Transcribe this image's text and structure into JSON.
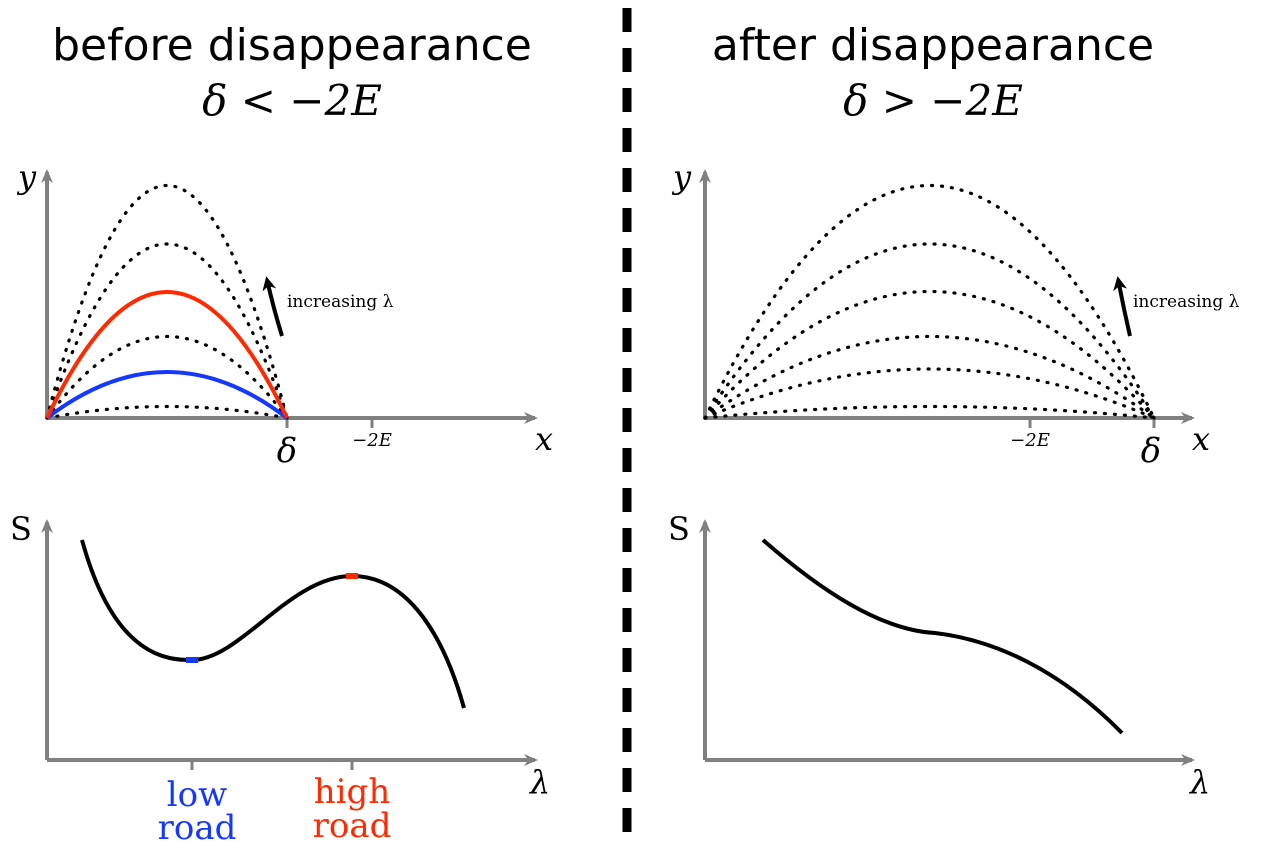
{
  "left": {
    "title": "before disappearance",
    "condition": "δ < −2E",
    "top_plot": {
      "y_label": "y",
      "x_label": "x",
      "delta_label": "δ",
      "minus2E_label": "−2E",
      "annotation": "increasing λ"
    },
    "bottom_plot": {
      "y_label": "S",
      "x_label": "λ",
      "low_road_line1": "low",
      "low_road_line2": "road",
      "high_road_line1": "high",
      "high_road_line2": "road"
    }
  },
  "right": {
    "title": "after disappearance",
    "condition": "δ > −2E",
    "top_plot": {
      "y_label": "y",
      "x_label": "x",
      "delta_label": "δ",
      "minus2E_label": "−2E",
      "annotation": "increasing λ"
    },
    "bottom_plot": {
      "y_label": "S",
      "x_label": "λ"
    }
  },
  "colors": {
    "axis": "#808080",
    "low_road": "#1538ff",
    "high_road": "#ff2a00",
    "curve": "#000000"
  }
}
